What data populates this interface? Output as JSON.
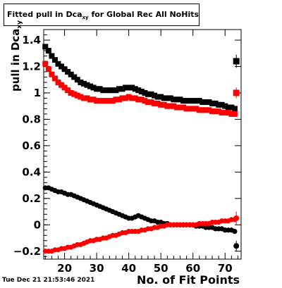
{
  "title": {
    "prefix": "Fitted pull in Dca",
    "subscript": "xy",
    "suffix": " for Global Rec All NoHits"
  },
  "timestamp": "Tue Dec 21 21:53:46 2021",
  "chart_data": {
    "type": "scatter",
    "title": "Fitted pull in Dca_xy for Global Rec All NoHits",
    "xlabel": "No. of Fit Points",
    "ylabel": "pull in Dca_xy",
    "ylabel_main": "pull in Dca",
    "ylabel_sub": "xy",
    "xlim": [
      13.5,
      75
    ],
    "ylim": [
      -0.26,
      1.48
    ],
    "xticks": [
      20,
      30,
      40,
      50,
      60,
      70
    ],
    "yticks": [
      -0.2,
      0,
      0.2,
      0.4,
      0.6,
      0.8,
      1,
      1.2,
      1.4
    ],
    "ytick_labels": [
      "−0.2",
      "0",
      "0.2",
      "0.4",
      "0.6",
      "0.8",
      "1",
      "1.2",
      "1.4"
    ],
    "grid": false,
    "series": [
      {
        "name": "",
        "color": "#000000",
        "marker": "square",
        "x": [
          14,
          15,
          16,
          17,
          18,
          19,
          20,
          21,
          22,
          23,
          24,
          25,
          26,
          27,
          28,
          29,
          30,
          31,
          32,
          33,
          34,
          35,
          36,
          37,
          38,
          39,
          40,
          41,
          42,
          43,
          44,
          45,
          46,
          47,
          48,
          49,
          50,
          51,
          52,
          53,
          54,
          55,
          56,
          57,
          58,
          59,
          60,
          61,
          62,
          63,
          64,
          65,
          66,
          67,
          68,
          69,
          70,
          71,
          72,
          73
        ],
        "y": [
          1.35,
          1.32,
          1.28,
          1.25,
          1.22,
          1.2,
          1.18,
          1.16,
          1.14,
          1.12,
          1.1,
          1.08,
          1.07,
          1.06,
          1.05,
          1.04,
          1.03,
          1.03,
          1.02,
          1.02,
          1.02,
          1.02,
          1.02,
          1.03,
          1.03,
          1.04,
          1.04,
          1.04,
          1.03,
          1.02,
          1.01,
          1.0,
          0.99,
          0.99,
          0.98,
          0.97,
          0.97,
          0.96,
          0.96,
          0.96,
          0.95,
          0.95,
          0.95,
          0.94,
          0.94,
          0.94,
          0.94,
          0.94,
          0.94,
          0.93,
          0.93,
          0.93,
          0.92,
          0.92,
          0.91,
          0.91,
          0.9,
          0.89,
          0.89,
          0.88
        ]
      },
      {
        "name": "",
        "color": "#ff0000",
        "marker": "square",
        "x": [
          14,
          15,
          16,
          17,
          18,
          19,
          20,
          21,
          22,
          23,
          24,
          25,
          26,
          27,
          28,
          29,
          30,
          31,
          32,
          33,
          34,
          35,
          36,
          37,
          38,
          39,
          40,
          41,
          42,
          43,
          44,
          45,
          46,
          47,
          48,
          49,
          50,
          51,
          52,
          53,
          54,
          55,
          56,
          57,
          58,
          59,
          60,
          61,
          62,
          63,
          64,
          65,
          66,
          67,
          68,
          69,
          70,
          71,
          72,
          73
        ],
        "y": [
          1.22,
          1.18,
          1.14,
          1.11,
          1.08,
          1.06,
          1.04,
          1.02,
          1.0,
          0.99,
          0.98,
          0.97,
          0.96,
          0.96,
          0.95,
          0.95,
          0.94,
          0.94,
          0.94,
          0.94,
          0.94,
          0.94,
          0.95,
          0.95,
          0.96,
          0.96,
          0.97,
          0.96,
          0.96,
          0.95,
          0.95,
          0.94,
          0.93,
          0.93,
          0.92,
          0.92,
          0.91,
          0.91,
          0.9,
          0.9,
          0.9,
          0.89,
          0.89,
          0.89,
          0.88,
          0.88,
          0.88,
          0.88,
          0.87,
          0.87,
          0.87,
          0.87,
          0.86,
          0.86,
          0.86,
          0.85,
          0.85,
          0.85,
          0.84,
          0.84
        ]
      },
      {
        "name": "",
        "color": "#000000",
        "marker": "circle",
        "x": [
          14,
          15,
          16,
          17,
          18,
          19,
          20,
          21,
          22,
          23,
          24,
          25,
          26,
          27,
          28,
          29,
          30,
          31,
          32,
          33,
          34,
          35,
          36,
          37,
          38,
          39,
          40,
          41,
          42,
          43,
          44,
          45,
          46,
          47,
          48,
          49,
          50,
          51,
          52,
          53,
          54,
          55,
          56,
          57,
          58,
          59,
          60,
          61,
          62,
          63,
          64,
          65,
          66,
          67,
          68,
          69,
          70,
          71,
          72,
          73
        ],
        "y": [
          0.28,
          0.28,
          0.27,
          0.26,
          0.25,
          0.25,
          0.24,
          0.23,
          0.23,
          0.22,
          0.21,
          0.2,
          0.19,
          0.18,
          0.17,
          0.16,
          0.15,
          0.14,
          0.13,
          0.12,
          0.11,
          0.1,
          0.09,
          0.08,
          0.07,
          0.06,
          0.05,
          0.05,
          0.06,
          0.07,
          0.06,
          0.05,
          0.04,
          0.03,
          0.03,
          0.02,
          0.02,
          0.01,
          0.01,
          0.0,
          0.0,
          0.0,
          0.0,
          0.0,
          0.0,
          0.0,
          0.0,
          -0.01,
          -0.01,
          -0.01,
          -0.02,
          -0.02,
          -0.02,
          -0.03,
          -0.03,
          -0.03,
          -0.04,
          -0.04,
          -0.04,
          -0.05
        ]
      },
      {
        "name": "",
        "color": "#ff0000",
        "marker": "circle",
        "x": [
          14,
          15,
          16,
          17,
          18,
          19,
          20,
          21,
          22,
          23,
          24,
          25,
          26,
          27,
          28,
          29,
          30,
          31,
          32,
          33,
          34,
          35,
          36,
          37,
          38,
          39,
          40,
          41,
          42,
          43,
          44,
          45,
          46,
          47,
          48,
          49,
          50,
          51,
          52,
          53,
          54,
          55,
          56,
          57,
          58,
          59,
          60,
          61,
          62,
          63,
          64,
          65,
          66,
          67,
          68,
          69,
          70,
          71,
          72,
          73
        ],
        "y": [
          -0.2,
          -0.2,
          -0.2,
          -0.19,
          -0.19,
          -0.18,
          -0.18,
          -0.17,
          -0.17,
          -0.16,
          -0.15,
          -0.15,
          -0.14,
          -0.13,
          -0.12,
          -0.12,
          -0.11,
          -0.11,
          -0.1,
          -0.1,
          -0.09,
          -0.08,
          -0.08,
          -0.07,
          -0.06,
          -0.06,
          -0.05,
          -0.05,
          -0.05,
          -0.05,
          -0.04,
          -0.04,
          -0.03,
          -0.03,
          -0.02,
          -0.02,
          -0.01,
          -0.01,
          0.0,
          0.0,
          0.0,
          0.0,
          0.0,
          0.0,
          0.0,
          0.0,
          0.0,
          0.0,
          0.01,
          0.01,
          0.01,
          0.01,
          0.02,
          0.02,
          0.02,
          0.03,
          0.03,
          0.03,
          0.04,
          0.04
        ]
      }
    ],
    "summary_points": [
      {
        "color": "#000000",
        "marker": "square",
        "x": 73.5,
        "y": 1.24,
        "err": 0.05
      },
      {
        "color": "#ff0000",
        "marker": "square",
        "x": 73.5,
        "y": 1.0,
        "err": 0.04
      },
      {
        "color": "#000000",
        "marker": "circle",
        "x": 73.5,
        "y": -0.16,
        "err": 0.04
      },
      {
        "color": "#ff0000",
        "marker": "circle",
        "x": 73.5,
        "y": 0.05,
        "err": 0.05
      }
    ]
  }
}
